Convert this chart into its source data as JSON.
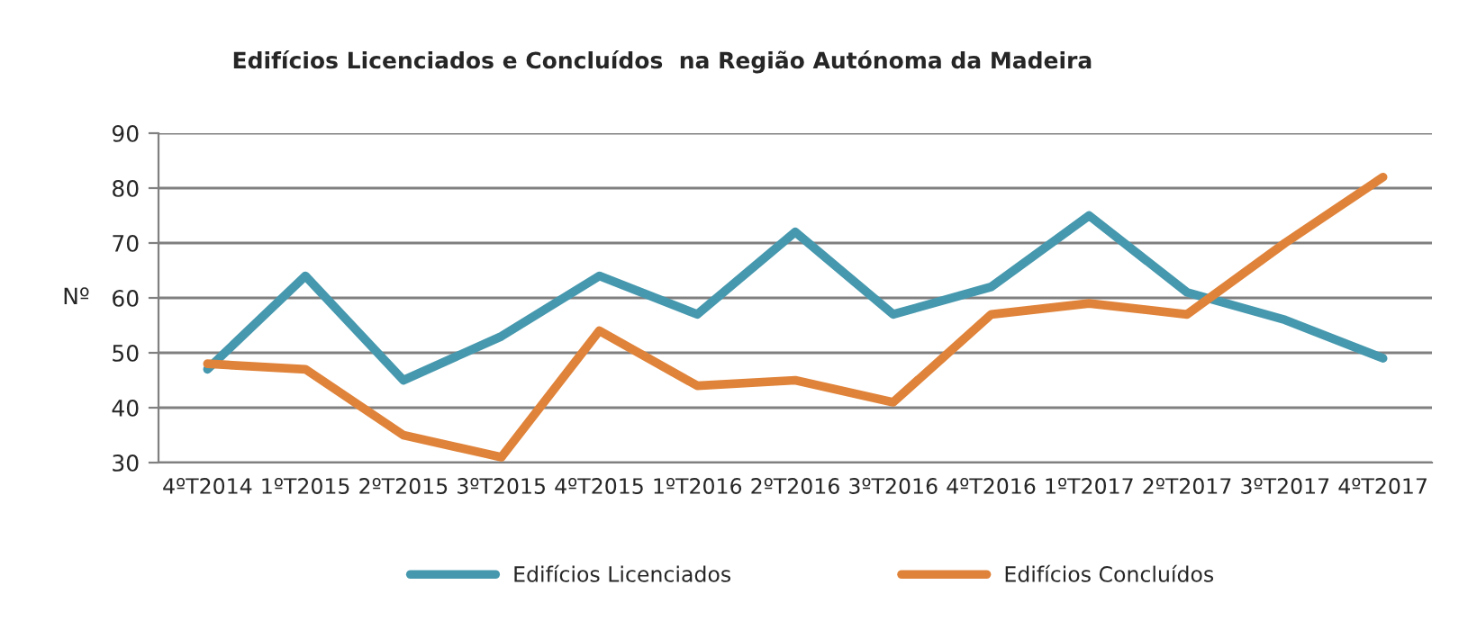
{
  "chart_data": {
    "type": "line",
    "title": "Edifícios Licenciados e Concluídos  na Região Autónoma da Madeira",
    "ylabel": "Nº",
    "categories": [
      "4ºT2014",
      "1ºT2015",
      "2ºT2015",
      "3ºT2015",
      "4ºT2015",
      "1ºT2016",
      "2ºT2016",
      "3ºT2016",
      "4ºT2016",
      "1ºT2017",
      "2ºT2017",
      "3ºT2017",
      "4ºT2017"
    ],
    "series": [
      {
        "name": "Edifícios Licenciados",
        "color": "#4698ae",
        "values": [
          47,
          64,
          45,
          53,
          64,
          57,
          72,
          57,
          62,
          75,
          61,
          56,
          49
        ]
      },
      {
        "name": "Edifícios Concluídos",
        "color": "#e0833a",
        "values": [
          48,
          47,
          35,
          31,
          54,
          44,
          45,
          41,
          57,
          59,
          57,
          70,
          82
        ]
      }
    ],
    "ylim": [
      30,
      90
    ],
    "yticks": [
      30,
      40,
      50,
      60,
      70,
      80,
      90
    ],
    "grid": "y",
    "legend": "bottom",
    "marker": "none",
    "line_style": "solid"
  }
}
